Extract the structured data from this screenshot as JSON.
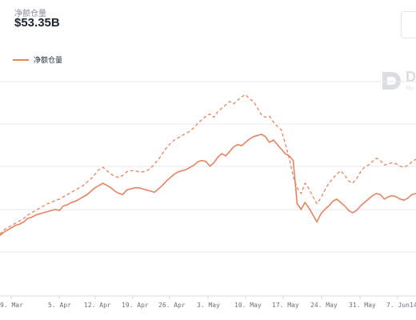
{
  "header": {
    "label": "净额仓量",
    "value": "$53.35B"
  },
  "legend": {
    "label": "净额仓量"
  },
  "watermark": {
    "letter": "D",
    "sub": "Yo"
  },
  "colors": {
    "series": "#e9825f",
    "grid": "#e8eaed",
    "tick_text": "#6c717a"
  },
  "chart_data": {
    "type": "line",
    "x_ticks": [
      "9. Mar",
      "5. Apr",
      "12. Apr",
      "19. Apr",
      "26. Apr",
      "3. May",
      "10. May",
      "17. May",
      "24. May",
      "31. May",
      "7. Jun",
      "14"
    ],
    "y_gridlines": 6,
    "series": [
      {
        "name": "净额仓量",
        "style": "solid",
        "values": [
          0.4,
          0.7,
          0.9,
          1.1,
          1.3,
          1.4,
          1.6,
          1.9,
          2.0,
          2.2,
          2.3,
          2.4,
          2.5,
          2.6,
          2.7,
          2.6,
          3.0,
          3.1,
          3.3,
          3.4,
          3.6,
          3.8,
          4.0,
          4.3,
          4.6,
          4.8,
          5.0,
          4.8,
          4.6,
          4.3,
          4.1,
          4.0,
          4.4,
          4.5,
          4.6,
          4.6,
          4.5,
          4.4,
          4.3,
          4.2,
          4.5,
          4.8,
          5.2,
          5.5,
          5.8,
          6.0,
          6.1,
          6.2,
          6.4,
          6.6,
          6.9,
          7.0,
          6.9,
          6.5,
          6.8,
          7.3,
          7.6,
          7.4,
          7.8,
          8.2,
          8.4,
          8.3,
          8.6,
          8.9,
          9.1,
          9.2,
          9.3,
          9.1,
          8.6,
          8.8,
          8.4,
          8.0,
          7.6,
          7.4,
          7.0,
          3.2,
          2.7,
          3.3,
          2.8,
          2.2,
          1.6,
          2.3,
          2.7,
          3.0,
          3.4,
          3.6,
          3.3,
          3.0,
          2.6,
          2.4,
          2.6,
          3.0,
          3.3,
          3.6,
          3.9,
          4.1,
          4.0,
          3.6,
          3.8,
          3.9,
          3.8,
          3.6,
          3.5,
          3.7,
          4.0,
          4.1
        ],
        "values_hi": [
          0.5,
          0.9,
          1.1,
          1.3,
          1.5,
          1.7,
          1.9,
          2.2,
          2.4,
          2.6,
          2.8,
          3.0,
          3.2,
          3.3,
          3.5,
          3.6,
          3.8,
          4.0,
          4.2,
          4.4,
          4.6,
          4.8,
          5.1,
          5.4,
          5.8,
          6.2,
          6.4,
          6.1,
          5.8,
          5.6,
          5.5,
          5.7,
          6.0,
          6.1,
          6.1,
          6.0,
          6.0,
          6.1,
          6.3,
          6.7,
          7.1,
          7.6,
          8.1,
          8.5,
          8.8,
          9.0,
          9.2,
          9.4,
          9.6,
          9.9,
          10.3,
          10.6,
          10.9,
          11.1,
          10.8,
          11.3,
          11.6,
          11.9,
          12.2,
          12.0,
          12.3,
          12.6,
          12.8,
          12.4,
          12.2,
          11.6,
          11.0,
          10.8,
          10.9,
          10.4,
          10.0,
          9.7,
          8.5,
          7.2,
          5.6,
          4.6,
          4.1,
          5.0,
          4.5,
          3.8,
          3.2,
          3.7,
          4.4,
          5.0,
          5.4,
          5.8,
          6.1,
          5.7,
          5.2,
          5.0,
          5.4,
          6.0,
          6.4,
          6.6,
          6.9,
          7.2,
          7.0,
          6.6,
          6.7,
          6.8,
          6.7,
          6.5,
          6.4,
          6.6,
          6.9,
          7.1
        ]
      }
    ]
  }
}
